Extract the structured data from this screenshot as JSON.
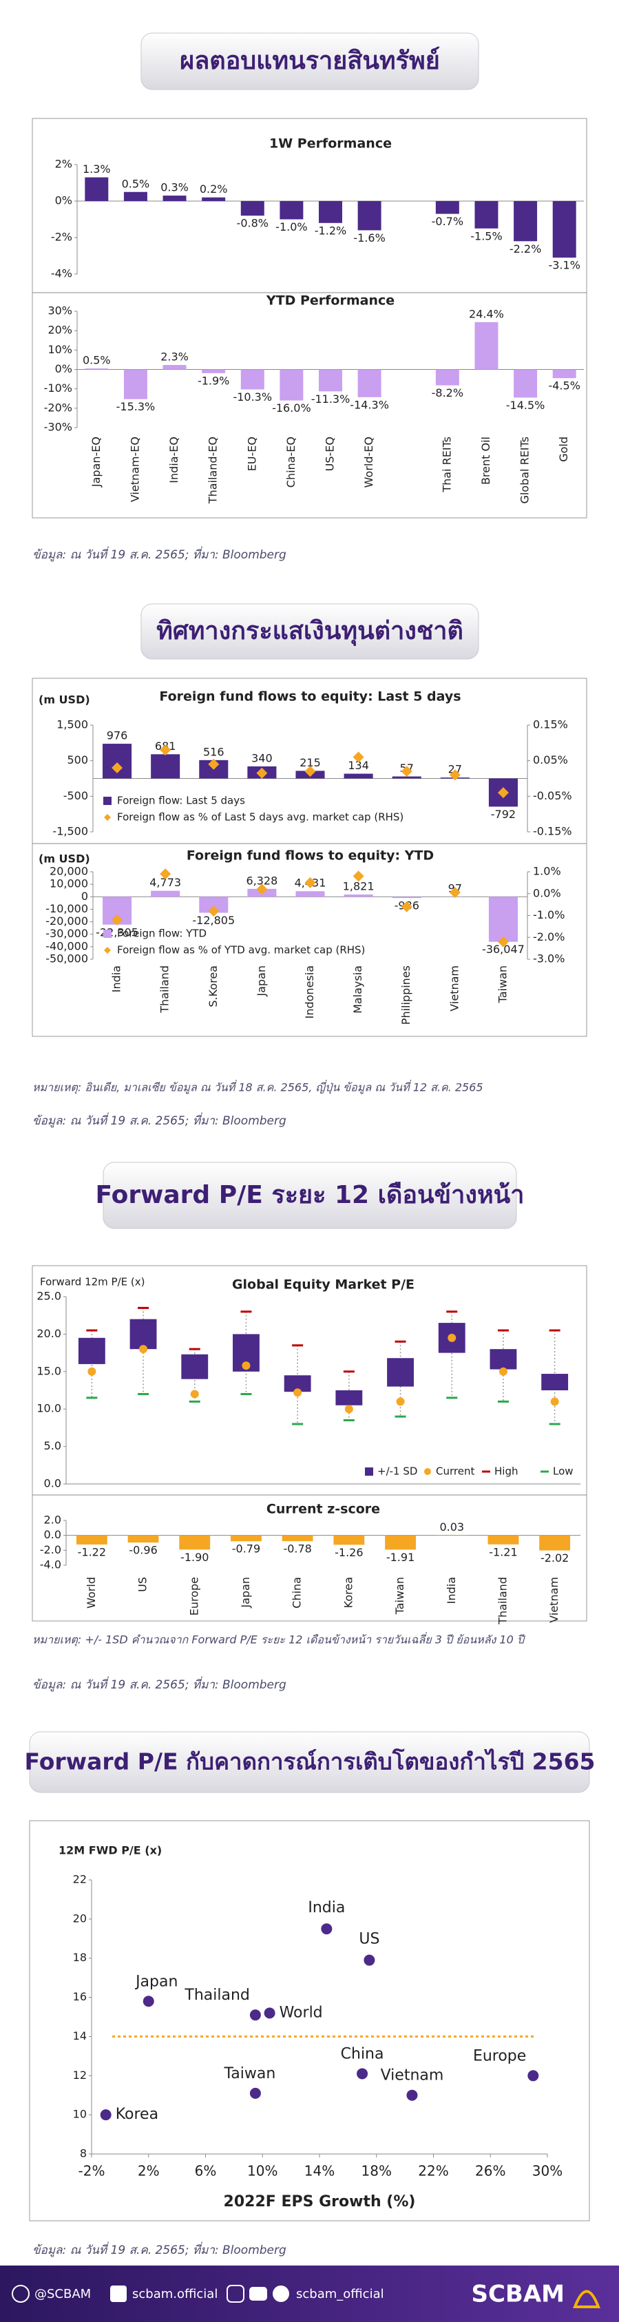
{
  "sections": [
    {
      "title": "ผลตอบแทนรายสินทรัพย์",
      "source": "ข้อมูล: ณ วันที่ 19 ส.ค. 2565; ที่มา: Bloomberg"
    },
    {
      "title": "ทิศทางกระแสเงินทุนต่างชาติ",
      "note": "หมายเหตุ: อินเดีย, มาเลเซีย ข้อมูล ณ วันที่ 18 ส.ค. 2565, ญี่ปุ่น ข้อมูล ณ วันที่ 12 ส.ค. 2565",
      "source": "ข้อมูล: ณ วันที่ 19 ส.ค. 2565; ที่มา: Bloomberg"
    },
    {
      "title": "Forward P/E ระยะ 12 เดือนข้างหน้า",
      "note": "หมายเหตุ: +/- 1SD คำนวณจาก Forward P/E ระยะ 12 เดือนข้างหน้า รายวันเฉลี่ย 3 ปี ย้อนหลัง 10 ปี",
      "source": "ข้อมูล: ณ วันที่ 19 ส.ค. 2565; ที่มา: Bloomberg"
    },
    {
      "title": "Forward P/E กับคาดการณ์การเติบโตของกำไรปี 2565",
      "source": "ข้อมูล: ณ วันที่ 19 ส.ค. 2565; ที่มา: Bloomberg"
    }
  ],
  "chart_data": [
    {
      "type": "bar",
      "title": "1W Performance",
      "values": [
        1.3,
        0.5,
        0.3,
        0.2,
        -0.8,
        -1.0,
        -1.2,
        -1.6,
        null,
        -0.7,
        -1.5,
        -2.2,
        -3.1
      ],
      "value_labels": [
        "1.3%",
        "0.5%",
        "0.3%",
        "0.2%",
        "-0.8%",
        "-1.0%",
        "-1.2%",
        "-1.6%",
        null,
        "-0.7%",
        "-1.5%",
        "-2.2%",
        "-3.1%"
      ],
      "color": "#4b2a8a",
      "ylim": [
        -4,
        2
      ],
      "yticks": [
        {
          "value": 2,
          "label": "2%"
        },
        {
          "value": 0,
          "label": "0%"
        },
        {
          "value": -2,
          "label": "-2%"
        },
        {
          "value": -4,
          "label": "-4%"
        }
      ]
    },
    {
      "type": "bar",
      "title": "YTD Performance",
      "categories": [
        "Japan-EQ",
        "Vietnam-EQ",
        "India-EQ",
        "Thailand-EQ",
        "EU-EQ",
        "China-EQ",
        "US-EQ",
        "World-EQ",
        null,
        "Thai REITs",
        "Brent Oil",
        "Global REITs",
        "Gold"
      ],
      "values": [
        0.5,
        -15.3,
        2.3,
        -1.9,
        -10.3,
        -16.0,
        -11.3,
        -14.3,
        null,
        -8.2,
        24.4,
        -14.5,
        -4.5
      ],
      "value_labels": [
        "0.5%",
        "-15.3%",
        "2.3%",
        "-1.9%",
        "-10.3%",
        "-16.0%",
        "-11.3%",
        "-14.3%",
        null,
        "-8.2%",
        "24.4%",
        "-14.5%",
        "-4.5%"
      ],
      "color": "#c99ff0",
      "ylim": [
        -30,
        30
      ],
      "yticks": [
        {
          "value": 30,
          "label": "30%"
        },
        {
          "value": 20,
          "label": "20%"
        },
        {
          "value": 10,
          "label": "10%"
        },
        {
          "value": 0,
          "label": "0%"
        },
        {
          "value": -10,
          "label": "-10%"
        },
        {
          "value": -20,
          "label": "-20%"
        },
        {
          "value": -30,
          "label": "-30%"
        }
      ]
    },
    {
      "type": "bar",
      "title": "Foreign fund flows to equity: Last 5 days",
      "ylabel": "(m USD)",
      "ylim": [
        -1500,
        1500
      ],
      "yticks": [
        {
          "value": 1500,
          "label": "1,500"
        },
        500,
        -500,
        {
          "value": -1500,
          "label": "-1,500"
        }
      ],
      "y2lim": [
        -0.15,
        0.15
      ],
      "y2ticks": [
        {
          "value": 0.15,
          "label": "0.15%"
        },
        {
          "value": 0.05,
          "label": "0.05%"
        },
        {
          "value": -0.05,
          "label": "-0.05%"
        },
        {
          "value": -0.15,
          "label": "-0.15%"
        }
      ],
      "series": [
        {
          "name": "Foreign flow: Last 5 days",
          "color": "#4b2a8a",
          "values": [
            976,
            681,
            516,
            340,
            215,
            134,
            57,
            27,
            -792
          ]
        },
        {
          "name": "Foreign flow as % of Last 5 days avg. market cap (RHS)",
          "color": "#f5a623",
          "axis": "y2",
          "values": [
            0.03,
            0.08,
            0.04,
            0.015,
            0.02,
            0.06,
            0.02,
            0.01,
            -0.04
          ]
        }
      ]
    },
    {
      "type": "bar",
      "title": "Foreign fund flows to equity: YTD",
      "ylabel": "(m USD)",
      "categories": [
        "India",
        "Thailand",
        "S.Korea",
        "Japan",
        "Indonesia",
        "Malaysia",
        "Philippines",
        "Vietnam",
        "Taiwan"
      ],
      "ylim": [
        -50000,
        20000
      ],
      "yticks": [
        {
          "value": 20000,
          "label": "20,000"
        },
        {
          "value": 10000,
          "label": "10,000"
        },
        0,
        {
          "value": -10000,
          "label": "-10,000"
        },
        {
          "value": -20000,
          "label": "-20,000"
        },
        {
          "value": -30000,
          "label": "-30,000"
        },
        {
          "value": -40000,
          "label": "-40,000"
        },
        {
          "value": -50000,
          "label": "-50,000"
        }
      ],
      "y2lim": [
        -3,
        1
      ],
      "y2ticks": [
        {
          "value": 1,
          "label": "1.0%"
        },
        {
          "value": 0,
          "label": "0.0%"
        },
        {
          "value": -1,
          "label": "-1.0%"
        },
        {
          "value": -2,
          "label": "-2.0%"
        },
        {
          "value": -3,
          "label": "-3.0%"
        }
      ],
      "series": [
        {
          "name": "Foreign flow: YTD",
          "color": "#c99ff0",
          "values": [
            -22305,
            4773,
            -12805,
            6328,
            4431,
            1821,
            -986,
            97,
            -36047
          ],
          "value_labels": [
            "-22,305",
            "4,773",
            "-12,805",
            "6,328",
            "4,431",
            "1,821",
            "-986",
            "97",
            "-36,047"
          ]
        },
        {
          "name": "Foreign flow as % of YTD avg. market cap (RHS)",
          "color": "#f5a623",
          "axis": "y2",
          "values": [
            -1.2,
            0.9,
            -0.8,
            0.2,
            0.5,
            0.8,
            -0.6,
            0.05,
            -2.2
          ]
        }
      ]
    },
    {
      "type": "box",
      "title": "Global Equity Market P/E",
      "ylabel": "Forward 12m P/E (x)",
      "ylim": [
        0,
        25
      ],
      "yticks": [
        {
          "value": 0,
          "label": "0.0"
        },
        {
          "value": 5,
          "label": "5.0"
        },
        {
          "value": 10,
          "label": "10.0"
        },
        {
          "value": 15,
          "label": "15.0"
        },
        {
          "value": 20,
          "label": "20.0"
        },
        {
          "value": 25,
          "label": "25.0"
        }
      ],
      "series": [
        {
          "name": "+/-1 SD",
          "color": "#4b2a8a",
          "low": [
            16,
            18,
            14,
            15,
            12.3,
            10.5,
            13,
            17.5,
            15.3,
            12.5
          ],
          "high": [
            19.5,
            22,
            17.3,
            20,
            14.5,
            12.5,
            16.8,
            21.5,
            18,
            14.7
          ]
        },
        {
          "name": "Current",
          "color": "#f5a623",
          "values": [
            15,
            18,
            12,
            15.8,
            12.2,
            10,
            11,
            19.5,
            15,
            11
          ]
        },
        {
          "name": "High",
          "color": "#c00000",
          "values": [
            20.5,
            23.5,
            18,
            23,
            18.5,
            15,
            19,
            23,
            20.5,
            20.5
          ]
        },
        {
          "name": "Low",
          "color": "#2aa84a",
          "values": [
            11.5,
            12,
            11,
            12,
            8,
            8.5,
            9,
            11.5,
            11,
            8
          ]
        }
      ]
    },
    {
      "type": "bar",
      "title": "Current z-score",
      "categories": [
        "World",
        "US",
        "Europe",
        "Japan",
        "China",
        "Korea",
        "Taiwan",
        "India",
        "Thailand",
        "Vietnam"
      ],
      "values": [
        -1.22,
        -0.96,
        -1.9,
        -0.79,
        -0.78,
        -1.26,
        -1.91,
        0.03,
        -1.21,
        -2.02
      ],
      "value_labels": [
        "-1.22",
        "-0.96",
        "-1.90",
        "-0.79",
        "-0.78",
        "-1.26",
        "-1.91",
        "0.03",
        "-1.21",
        "-2.02"
      ],
      "color": "#f5a623",
      "ylim": [
        -4,
        2
      ],
      "yticks": [
        {
          "value": 2,
          "label": "2.0"
        },
        {
          "value": 0,
          "label": "0.0"
        },
        {
          "value": -2,
          "label": "-2.0"
        },
        {
          "value": -4,
          "label": "-4.0"
        }
      ]
    },
    {
      "type": "scatter",
      "ylabel": "12M FWD P/E (x)",
      "xlabel": "2022F EPS Growth (%)",
      "categories": [
        "India",
        "US",
        "Japan",
        "Thailand",
        "World",
        "China",
        "Europe",
        "Taiwan",
        "Vietnam",
        "Korea"
      ],
      "x": [
        14.5,
        17.5,
        2,
        9.5,
        10.5,
        17,
        29,
        9.5,
        20.5,
        -1
      ],
      "values": [
        19.5,
        17.9,
        15.8,
        15.1,
        15.2,
        12.1,
        12,
        11.1,
        11,
        10
      ],
      "color": "#4b2a8a",
      "reference_line": 14,
      "reference_color": "#f5a623",
      "xlim": [
        -2,
        30
      ],
      "xticks": [
        {
          "value": -2,
          "label": "-2%"
        },
        {
          "value": 2,
          "label": "2%"
        },
        {
          "value": 6,
          "label": "6%"
        },
        {
          "value": 10,
          "label": "10%"
        },
        {
          "value": 14,
          "label": "14%"
        },
        {
          "value": 18,
          "label": "18%"
        },
        {
          "value": 22,
          "label": "22%"
        },
        {
          "value": 26,
          "label": "26%"
        },
        {
          "value": 30,
          "label": "30%"
        }
      ],
      "ylim": [
        8,
        22
      ],
      "yticks": [
        8,
        10,
        12,
        14,
        16,
        18,
        20,
        22
      ]
    }
  ],
  "footer": {
    "handle": "@SCBAM",
    "facebook": "scbam.official",
    "social": "scbam_official",
    "brand": "SCBAM"
  }
}
